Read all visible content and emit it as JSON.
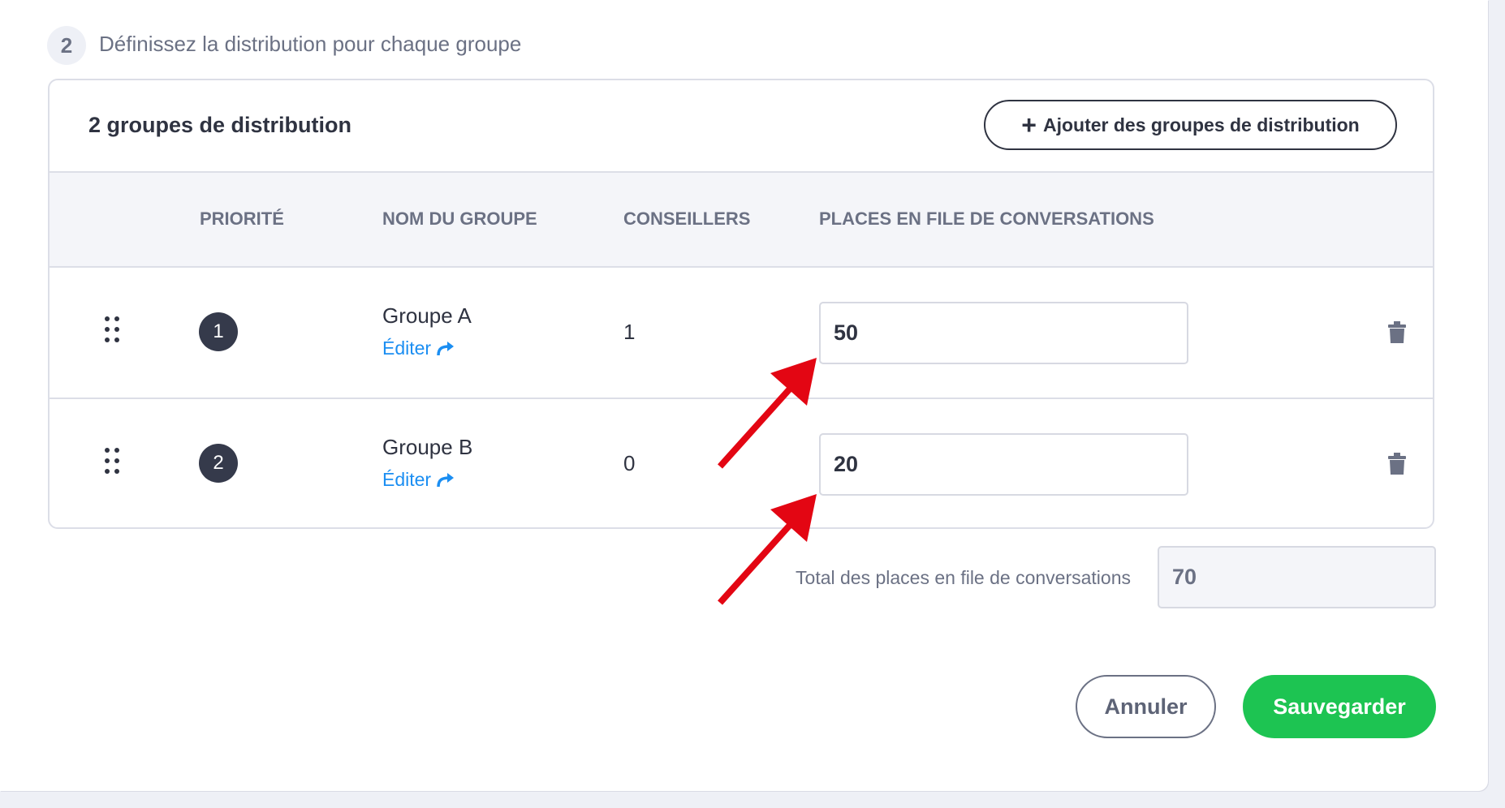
{
  "step": {
    "number": "2",
    "title": "Définissez la distribution pour chaque groupe"
  },
  "card": {
    "title": "2 groupes de distribution",
    "add_button": "Ajouter des groupes de distribution",
    "columns": [
      "PRIORITÉ",
      "NOM DU GROUPE",
      "CONSEILLERS",
      "PLACES EN FILE DE CONVERSATIONS"
    ],
    "rows": [
      {
        "priority": "1",
        "name": "Groupe A",
        "edit": "Éditer",
        "advisors": "1",
        "slots": "50"
      },
      {
        "priority": "2",
        "name": "Groupe B",
        "edit": "Éditer",
        "advisors": "0",
        "slots": "20"
      }
    ]
  },
  "total": {
    "label": "Total des places en file de conversations",
    "value": "70"
  },
  "actions": {
    "cancel": "Annuler",
    "save": "Sauvegarder"
  },
  "colors": {
    "accent_link": "#1b8ef2",
    "save": "#1dc452",
    "annotation_arrow": "#e30613"
  }
}
